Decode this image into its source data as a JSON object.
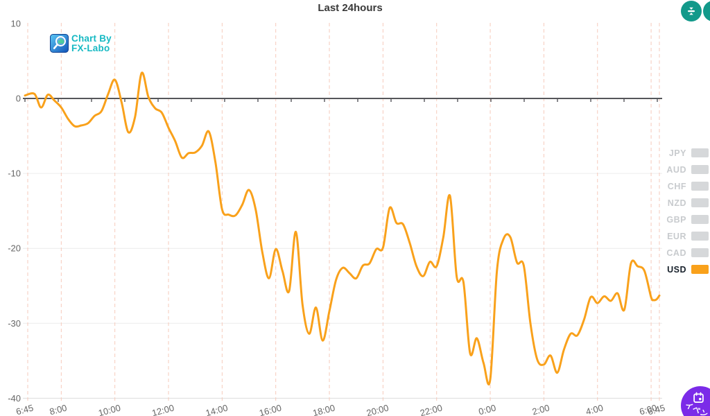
{
  "chart_data": {
    "type": "line",
    "title": "Last 24hours",
    "x_labels": [
      "6:45",
      "8:00",
      "10:00",
      "12:00",
      "14:00",
      "16:00",
      "18:00",
      "20:00",
      "22:00",
      "0:00",
      "2:00",
      "4:00",
      "6:00",
      "6:45"
    ],
    "x_label_hours": [
      0,
      1.25,
      3.25,
      5.25,
      7.25,
      9.25,
      11.25,
      13.25,
      15.25,
      17.25,
      19.25,
      21.25,
      23.25,
      24
    ],
    "y_ticks": [
      10,
      0,
      -10,
      -20,
      -30,
      -40
    ],
    "ylim": [
      -40,
      10
    ],
    "start_time": "6:45",
    "interval_minutes": 15,
    "grid": {
      "vertical_dashed": true,
      "zero_line": true
    },
    "legend_position": "right",
    "legend": [
      {
        "label": "JPY",
        "active": false
      },
      {
        "label": "AUD",
        "active": false
      },
      {
        "label": "CHF",
        "active": false
      },
      {
        "label": "NZD",
        "active": false
      },
      {
        "label": "GBP",
        "active": false
      },
      {
        "label": "EUR",
        "active": false
      },
      {
        "label": "CAD",
        "active": false
      },
      {
        "label": "USD",
        "active": true
      }
    ],
    "series": [
      {
        "name": "USD",
        "color": "#F9A11B",
        "values": [
          0.4,
          0.6,
          -1.2,
          0.5,
          -0.3,
          -1.2,
          -2.7,
          -3.7,
          -3.6,
          -3.3,
          -2.3,
          -1.7,
          0.6,
          2.5,
          -0.5,
          -4.5,
          -2.5,
          3.4,
          0.2,
          -1.3,
          -1.9,
          -3.9,
          -5.7,
          -7.9,
          -7.3,
          -7.2,
          -6.3,
          -4.4,
          -8.5,
          -14.8,
          -15.5,
          -15.6,
          -14.2,
          -12.2,
          -14.8,
          -20.5,
          -24.0,
          -20.1,
          -23.0,
          -25.7,
          -17.8,
          -27.5,
          -31.4,
          -27.9,
          -32.3,
          -28.4,
          -24.2,
          -22.6,
          -23.3,
          -24.0,
          -22.3,
          -22.0,
          -20.1,
          -19.9,
          -14.6,
          -16.6,
          -16.8,
          -19.3,
          -22.4,
          -23.7,
          -21.8,
          -22.4,
          -18.5,
          -13.0,
          -23.8,
          -24.5,
          -34.0,
          -32.0,
          -35.3,
          -37.5,
          -23.0,
          -18.7,
          -18.5,
          -21.9,
          -22.3,
          -30.0,
          -34.8,
          -35.5,
          -34.3,
          -36.6,
          -33.5,
          -31.4,
          -31.6,
          -29.5,
          -26.5,
          -27.3,
          -26.4,
          -27.0,
          -26.0,
          -28.2,
          -22.0,
          -22.4,
          -23.0,
          -26.5,
          -26.9,
          -26.8,
          -26.3
        ]
      }
    ]
  },
  "watermark": {
    "line1": "Chart By",
    "line2": "FX-Labo"
  },
  "buttons": {
    "collapse_scale_icon": "compress-vertical-icon",
    "expand_scale_icon": "expand-vertical-icon",
    "event_icon": "calendar-icon",
    "event_label": "イベン"
  },
  "colors": {
    "line": "#F9A11B",
    "vertical_grid": "#F6CABB",
    "horizontal_grid": "#ECECEC",
    "bottom_grid": "#DBDBDB",
    "zero_line": "#55565A",
    "tick_text": "#666666",
    "legend_inactive_text": "#C8CBCE",
    "legend_inactive_swatch": "#D6D8DA",
    "legend_active_text": "#17202A",
    "teal_button": "#12998A",
    "purple_button": "#7B2BE8",
    "watermark_text": "#16B9C3"
  }
}
